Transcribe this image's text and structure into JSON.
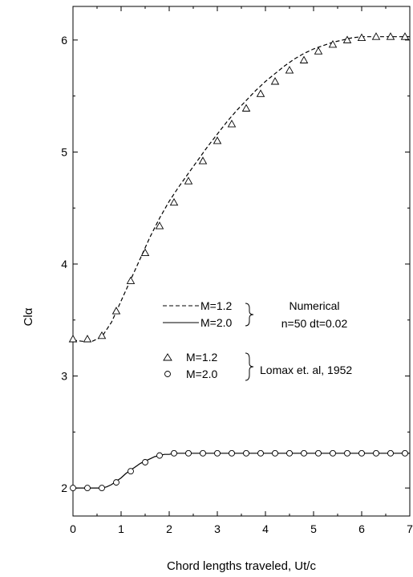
{
  "chart_data": {
    "type": "line",
    "xlabel": "Chord lengths traveled, Ut/c",
    "ylabel": "Clα",
    "xlim": [
      0,
      7
    ],
    "ylim": [
      1.75,
      6.3
    ],
    "xticks": [
      0,
      1,
      2,
      3,
      4,
      5,
      6,
      7
    ],
    "yticks": [
      2,
      3,
      4,
      5,
      6
    ],
    "grid": false,
    "series": [
      {
        "name": "M=1.2",
        "style": "dashed",
        "x": [
          0,
          0.2,
          0.4,
          0.6,
          0.8,
          1.0,
          1.2,
          1.4,
          1.6,
          1.8,
          2.0,
          2.2,
          2.4,
          2.6,
          2.8,
          3.0,
          3.2,
          3.4,
          3.6,
          3.8,
          4.0,
          4.2,
          4.4,
          4.6,
          4.8,
          5.0,
          5.2,
          5.4,
          5.6,
          5.8,
          6.0,
          6.2,
          6.4,
          6.6,
          6.8,
          7.0
        ],
        "y": [
          3.32,
          3.31,
          3.31,
          3.35,
          3.48,
          3.67,
          3.86,
          4.05,
          4.24,
          4.41,
          4.56,
          4.69,
          4.81,
          4.93,
          5.05,
          5.16,
          5.27,
          5.37,
          5.46,
          5.55,
          5.63,
          5.7,
          5.77,
          5.83,
          5.88,
          5.92,
          5.95,
          5.98,
          6.0,
          6.02,
          6.03,
          6.03,
          6.03,
          6.03,
          6.03,
          6.03
        ]
      },
      {
        "name": "M=2.0",
        "style": "solid",
        "x": [
          0,
          0.2,
          0.4,
          0.6,
          0.7,
          0.8,
          0.9,
          1.0,
          1.1,
          1.2,
          1.3,
          1.4,
          1.5,
          1.6,
          1.7,
          1.8,
          1.9,
          2.0,
          2.1,
          2.2,
          2.5,
          3.0,
          4.0,
          5.0,
          6.0,
          7.0
        ],
        "y": [
          2.0,
          2.0,
          2.0,
          2.0,
          2.01,
          2.03,
          2.06,
          2.09,
          2.13,
          2.16,
          2.19,
          2.22,
          2.24,
          2.26,
          2.28,
          2.29,
          2.3,
          2.3,
          2.31,
          2.31,
          2.31,
          2.31,
          2.31,
          2.31,
          2.31,
          2.31
        ]
      },
      {
        "name": "M=1.2",
        "style": "markers-triangle",
        "x": [
          0,
          0.3,
          0.6,
          0.9,
          1.2,
          1.5,
          1.8,
          2.1,
          2.4,
          2.7,
          3.0,
          3.3,
          3.6,
          3.9,
          4.2,
          4.5,
          4.8,
          5.1,
          5.4,
          5.7,
          6.0,
          6.3,
          6.6,
          6.9
        ],
        "y": [
          3.33,
          3.33,
          3.36,
          3.58,
          3.85,
          4.1,
          4.34,
          4.55,
          4.74,
          4.92,
          5.1,
          5.25,
          5.39,
          5.52,
          5.63,
          5.73,
          5.82,
          5.9,
          5.96,
          6.0,
          6.02,
          6.03,
          6.03,
          6.03
        ]
      },
      {
        "name": "M=2.0",
        "style": "markers-circle",
        "x": [
          0,
          0.3,
          0.6,
          0.9,
          1.2,
          1.5,
          1.8,
          2.1,
          2.4,
          2.7,
          3.0,
          3.3,
          3.6,
          3.9,
          4.2,
          4.5,
          4.8,
          5.1,
          5.4,
          5.7,
          6.0,
          6.3,
          6.6,
          6.9
        ],
        "y": [
          2.0,
          2.0,
          2.0,
          2.05,
          2.15,
          2.23,
          2.29,
          2.31,
          2.31,
          2.31,
          2.31,
          2.31,
          2.31,
          2.31,
          2.31,
          2.31,
          2.31,
          2.31,
          2.31,
          2.31,
          2.31,
          2.31,
          2.31,
          2.31
        ]
      }
    ],
    "legend": {
      "position": "center",
      "entries": [
        {
          "label": "M=1.2",
          "style": "dashed"
        },
        {
          "label": "M=2.0",
          "style": "solid"
        },
        {
          "label": "M=1.2",
          "style": "markers-triangle"
        },
        {
          "label": "M=2.0",
          "style": "markers-circle"
        }
      ],
      "group_numerical_title": "Numerical",
      "group_numerical_params": "n=50 dt=0.02",
      "group_reference": "Lomax et. al, 1952"
    }
  }
}
